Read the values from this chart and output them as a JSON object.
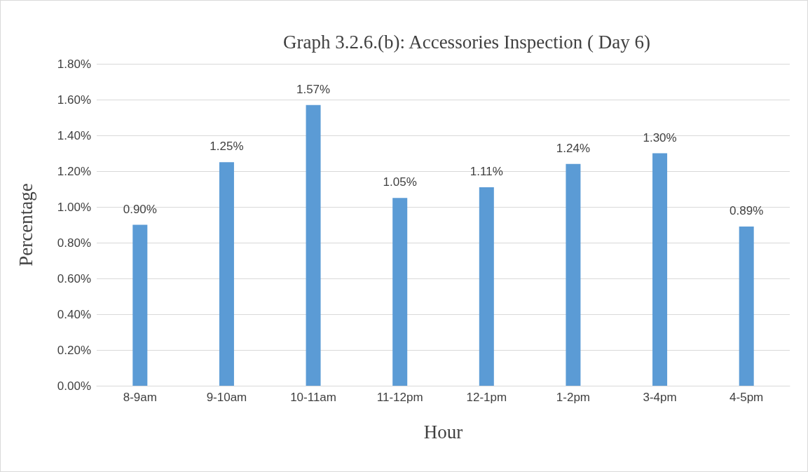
{
  "chart_data": {
    "type": "bar",
    "title": "Graph 3.2.6.(b): Accessories Inspection ( Day 6)",
    "xlabel": "Hour",
    "ylabel": "Percentage",
    "categories": [
      "8-9am",
      "9-10am",
      "10-11am",
      "11-12pm",
      "12-1pm",
      "1-2pm",
      "3-4pm",
      "4-5pm"
    ],
    "values": [
      0.9,
      1.25,
      1.57,
      1.05,
      1.11,
      1.24,
      1.3,
      0.89
    ],
    "value_labels": [
      "0.90%",
      "1.25%",
      "1.57%",
      "1.05%",
      "1.11%",
      "1.24%",
      "1.30%",
      "0.89%"
    ],
    "color": "#5b9bd5",
    "ylim": [
      0,
      1.8
    ],
    "yticks": [
      {
        "value": 0,
        "label": "0.00%"
      },
      {
        "value": 0.2,
        "label": "0.20%"
      },
      {
        "value": 0.4,
        "label": "0.40%"
      },
      {
        "value": 0.6,
        "label": "0.60%"
      },
      {
        "value": 0.8,
        "label": "0.80%"
      },
      {
        "value": 1.0,
        "label": "1.00%"
      },
      {
        "value": 1.2,
        "label": "1.20%"
      },
      {
        "value": 1.4,
        "label": "1.40%"
      },
      {
        "value": 1.6,
        "label": "1.60%"
      },
      {
        "value": 1.8,
        "label": "1.80%"
      }
    ],
    "grid": "y"
  }
}
